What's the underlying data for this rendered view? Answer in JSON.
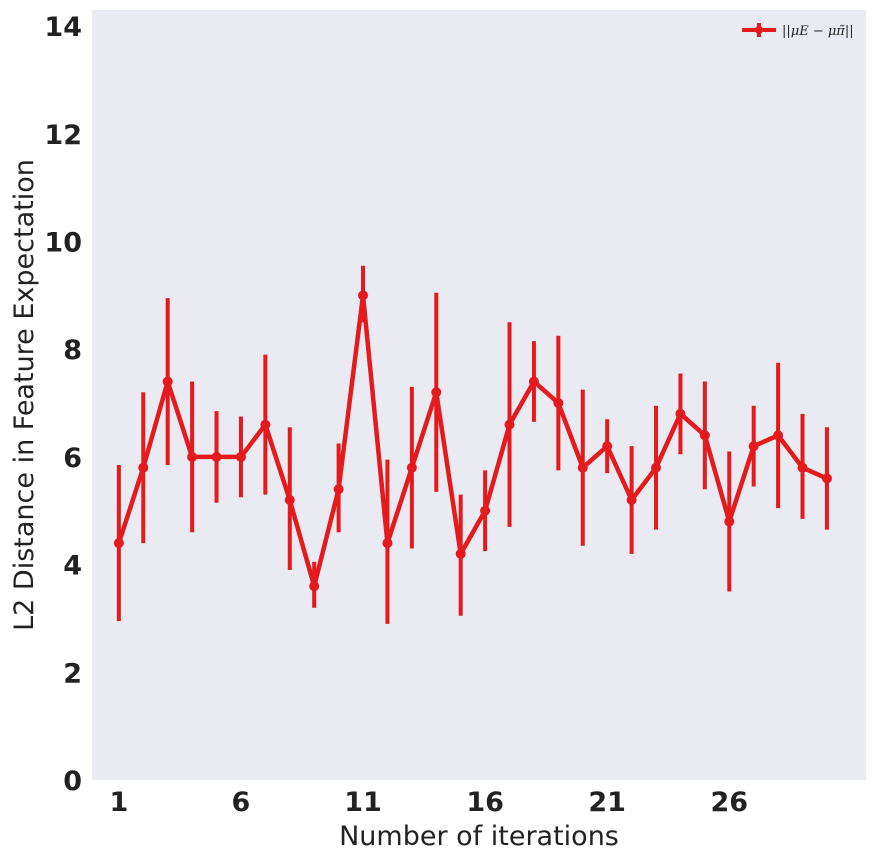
{
  "chart_data": {
    "type": "line",
    "xlabel": "Number of iterations",
    "ylabel": "L2 Distance in Feature Expectation",
    "xlim": [
      -0.1,
      31.6
    ],
    "ylim": [
      0,
      14.3
    ],
    "xticks": [
      1,
      6,
      11,
      16,
      21,
      26
    ],
    "yticks": [
      0,
      2,
      4,
      6,
      8,
      10,
      12,
      14
    ],
    "grid": false,
    "legend_position": "top-right",
    "colors": {
      "series": "#e41a1c",
      "plot_bg": "#eaeaf2"
    },
    "series": [
      {
        "name": "||μE − μπ̃||",
        "x": [
          1,
          2,
          3,
          4,
          5,
          6,
          7,
          8,
          9,
          10,
          11,
          12,
          13,
          14,
          15,
          16,
          17,
          18,
          19,
          20,
          21,
          22,
          23,
          24,
          25,
          26,
          27,
          28,
          29,
          30
        ],
        "y": [
          4.4,
          5.8,
          7.4,
          6.0,
          6.0,
          6.0,
          6.6,
          5.2,
          3.6,
          5.4,
          9.0,
          4.4,
          5.8,
          7.2,
          4.2,
          5.0,
          6.6,
          7.4,
          7.0,
          5.8,
          6.2,
          5.2,
          5.8,
          6.8,
          6.4,
          4.8,
          6.2,
          6.4,
          5.8,
          5.6
        ],
        "y_low": [
          2.95,
          4.4,
          5.85,
          4.6,
          5.15,
          5.25,
          5.3,
          3.9,
          3.2,
          4.6,
          8.5,
          2.9,
          4.3,
          5.35,
          3.05,
          4.25,
          4.7,
          6.65,
          5.75,
          4.35,
          5.7,
          4.2,
          4.65,
          6.05,
          5.4,
          3.5,
          5.45,
          5.05,
          4.85,
          4.65
        ],
        "y_high": [
          5.85,
          7.2,
          8.95,
          7.4,
          6.85,
          6.75,
          7.9,
          6.55,
          4.05,
          6.25,
          9.55,
          5.95,
          7.3,
          9.05,
          5.3,
          5.75,
          8.5,
          8.15,
          8.25,
          7.25,
          6.7,
          6.2,
          6.95,
          7.55,
          7.4,
          6.1,
          6.95,
          7.75,
          6.8,
          6.55
        ]
      }
    ]
  },
  "legend": {
    "label": "||μE − μπ̃||"
  }
}
